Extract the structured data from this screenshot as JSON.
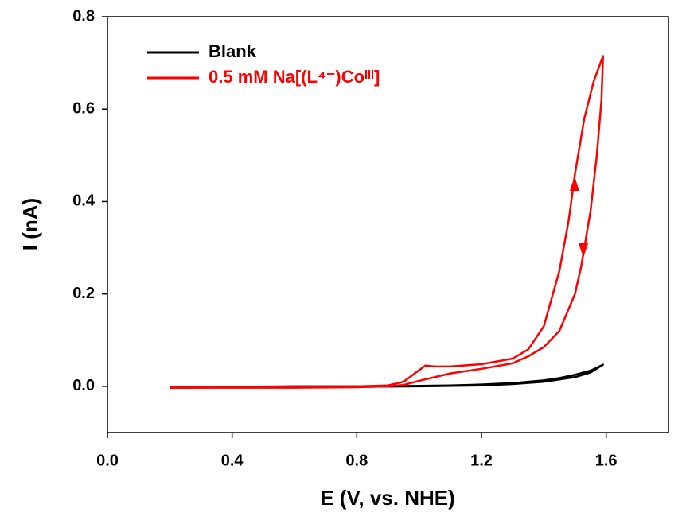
{
  "chart_data": {
    "type": "line",
    "x_label": "E (V, vs. NHE)",
    "y_label": "I (nA)",
    "xlim": [
      0,
      1.8
    ],
    "ylim": [
      -0.1,
      0.8
    ],
    "xticks": [
      {
        "value": 0,
        "label": "0.0"
      },
      0.4,
      0.8,
      1.2,
      1.6
    ],
    "yticks": [
      {
        "value": 0,
        "label": "0.0"
      },
      0.2,
      0.4,
      0.6,
      0.8
    ],
    "legend": "upper left",
    "series": [
      {
        "name": "Blank",
        "color": "#000000",
        "x": [
          0.2,
          0.4,
          0.6,
          0.8,
          1.0,
          1.1,
          1.2,
          1.3,
          1.4,
          1.45,
          1.5,
          1.55,
          1.59,
          1.55,
          1.5,
          1.4,
          1.3,
          1.2,
          1.0,
          0.8,
          0.6,
          0.4,
          0.2
        ],
        "values": [
          -0.002,
          -0.001,
          0,
          0,
          0.001,
          0.002,
          0.004,
          0.007,
          0.013,
          0.018,
          0.025,
          0.034,
          0.047,
          0.03,
          0.02,
          0.01,
          0.005,
          0.002,
          0,
          -0.001,
          -0.002,
          -0.002,
          -0.003
        ]
      },
      {
        "name": "0.5 mM Na[(L⁴⁻)Coᴵᴵᴵ]",
        "color": "#ff0000",
        "x": [
          0.2,
          0.4,
          0.6,
          0.8,
          0.9,
          0.95,
          1.0,
          1.02,
          1.05,
          1.1,
          1.2,
          1.3,
          1.35,
          1.4,
          1.45,
          1.48,
          1.5,
          1.53,
          1.56,
          1.59,
          1.585,
          1.57,
          1.55,
          1.52,
          1.5,
          1.45,
          1.4,
          1.35,
          1.3,
          1.2,
          1.1,
          1.0,
          0.95,
          0.9,
          0.8,
          0.6,
          0.4,
          0.2
        ],
        "values": [
          -0.002,
          -0.002,
          -0.001,
          0,
          0.002,
          0.01,
          0.035,
          0.045,
          0.043,
          0.043,
          0.048,
          0.06,
          0.08,
          0.13,
          0.25,
          0.36,
          0.46,
          0.58,
          0.66,
          0.715,
          0.62,
          0.5,
          0.38,
          0.26,
          0.2,
          0.12,
          0.085,
          0.065,
          0.05,
          0.038,
          0.028,
          0.012,
          0.003,
          0,
          -0.002,
          -0.003,
          -0.003,
          -0.003
        ]
      }
    ]
  }
}
